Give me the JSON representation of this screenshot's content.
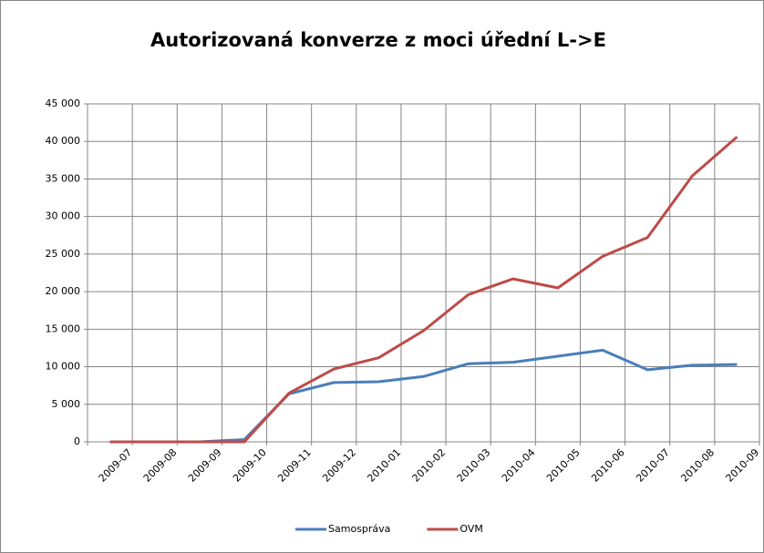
{
  "chart_data": {
    "type": "line",
    "title": "Autorizovaná konverze z moci úřední L->E",
    "categories": [
      "2009-07",
      "2009-08",
      "2009-09",
      "2009-10",
      "2009-11",
      "2009-12",
      "2010-01",
      "2010-02",
      "2010-03",
      "2010-04",
      "2010-05",
      "2010-06",
      "2010-07",
      "2010-08",
      "2010-09"
    ],
    "series": [
      {
        "name": "Samospráva",
        "color": "#4a7ebb",
        "values": [
          0,
          0,
          0,
          300,
          6400,
          7900,
          8000,
          8700,
          10400,
          10600,
          11400,
          12200,
          9600,
          10200,
          10300
        ]
      },
      {
        "name": "OVM",
        "color": "#be4b48",
        "values": [
          0,
          0,
          0,
          0,
          6500,
          9700,
          11200,
          14800,
          19600,
          21700,
          20500,
          24700,
          27200,
          35400,
          40600
        ]
      }
    ],
    "ylim": [
      0,
      45000
    ],
    "yticks": [
      0,
      {
        "value": 5000,
        "label": "5 000"
      },
      {
        "value": 10000,
        "label": "10 000"
      },
      {
        "value": 15000,
        "label": "15 000"
      },
      {
        "value": 20000,
        "label": "20 000"
      },
      {
        "value": 25000,
        "label": "25 000"
      },
      {
        "value": 30000,
        "label": "30 000"
      },
      {
        "value": 35000,
        "label": "35 000"
      },
      {
        "value": 40000,
        "label": "40 000"
      },
      {
        "value": 45000,
        "label": "45 000"
      }
    ],
    "grid": true,
    "legend": "bottom"
  }
}
